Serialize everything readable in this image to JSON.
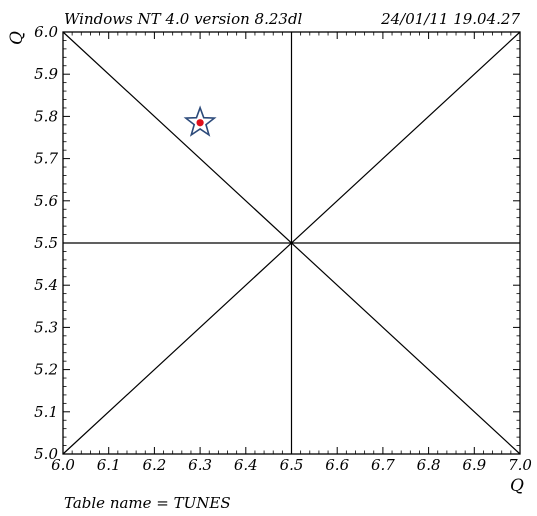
{
  "header": {
    "left": "Windows NT 4.0 version 8.23dl",
    "right": "24/01/11  19.04.27"
  },
  "footer": {
    "table_label": "Table name = TUNES"
  },
  "chart_data": {
    "type": "scatter",
    "title": "",
    "xlabel": "Q",
    "ylabel": "Q",
    "xlim": [
      6.0,
      7.0
    ],
    "ylim": [
      5.0,
      6.0
    ],
    "x_ticks": [
      "6.0",
      "6.1",
      "6.2",
      "6.3",
      "6.4",
      "6.5",
      "6.6",
      "6.7",
      "6.8",
      "6.9",
      "7.0"
    ],
    "y_ticks": [
      "5.0",
      "5.1",
      "5.2",
      "5.3",
      "5.4",
      "5.5",
      "5.6",
      "5.7",
      "5.8",
      "5.9",
      "6.0"
    ],
    "reference_lines": [
      {
        "from": [
          6.0,
          6.0
        ],
        "to": [
          7.0,
          5.0
        ]
      },
      {
        "from": [
          6.0,
          5.0
        ],
        "to": [
          7.0,
          6.0
        ]
      },
      {
        "from": [
          6.5,
          5.0
        ],
        "to": [
          6.5,
          6.0
        ]
      },
      {
        "from": [
          6.0,
          5.5
        ],
        "to": [
          7.0,
          5.5
        ]
      }
    ],
    "points": [
      {
        "x": 6.3,
        "y": 5.785,
        "marker": "star",
        "star_color": "#2c4a7a",
        "dot_color": "#e0101a"
      }
    ]
  }
}
